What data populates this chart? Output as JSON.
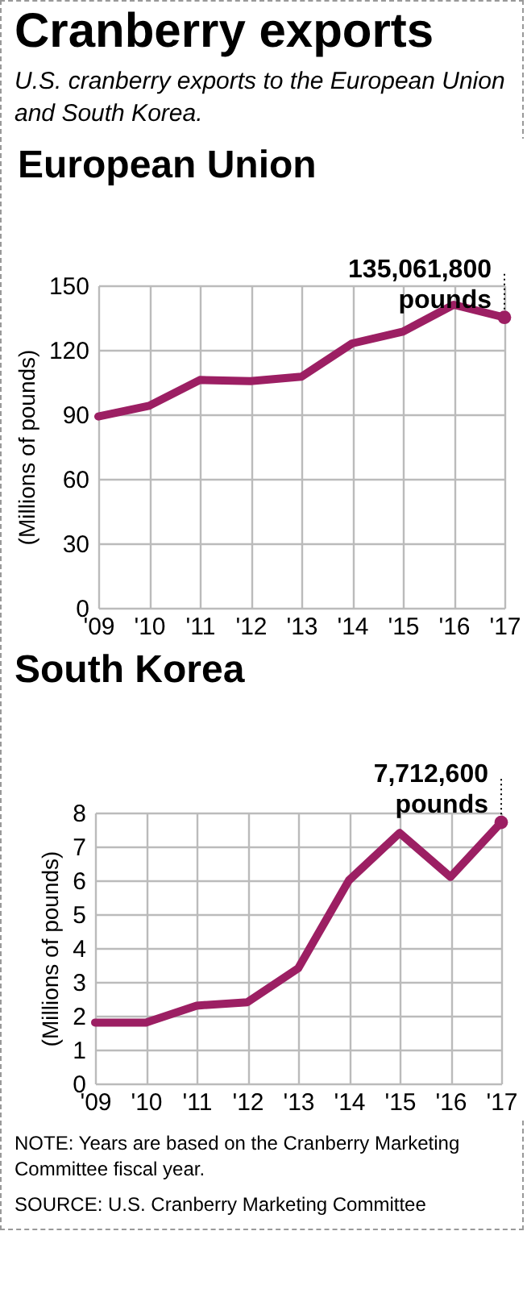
{
  "chart_data": [
    {
      "type": "other",
      "title": "Cranberry exports",
      "subtitle": "U.S. cranberry exports to the European Union and South Korea."
    },
    {
      "type": "line",
      "title": "European Union",
      "ylabel": "(Millions of pounds)",
      "categories": [
        "'09",
        "'10",
        "'11",
        "'12",
        "'13",
        "'14",
        "'15",
        "'16",
        "'17"
      ],
      "series": [
        {
          "color": "#9c1f63",
          "values": [
            89,
            94,
            106,
            105.5,
            107.5,
            123,
            128.5,
            141,
            135.1
          ]
        }
      ],
      "ylim": [
        0,
        150
      ],
      "yticks": [
        0,
        30,
        60,
        90,
        120,
        150
      ],
      "grid": true,
      "annotations": [
        {
          "text": "135,061,800 pounds",
          "x": "'17",
          "y": 135.1
        }
      ]
    },
    {
      "type": "line",
      "title": "South Korea",
      "ylabel": "(Millions of pounds)",
      "categories": [
        "'09",
        "'10",
        "'11",
        "'12",
        "'13",
        "'14",
        "'15",
        "'16",
        "'17"
      ],
      "series": [
        {
          "color": "#9c1f63",
          "values": [
            1.8,
            1.8,
            2.3,
            2.4,
            3.4,
            6.0,
            7.4,
            6.1,
            7.71
          ]
        }
      ],
      "ylim": [
        0,
        8
      ],
      "yticks": [
        0,
        1,
        2,
        3,
        4,
        5,
        6,
        7,
        8
      ],
      "grid": true,
      "annotations": [
        {
          "text": "7,712,600 pounds",
          "x": "'17",
          "y": 7.71
        },
        "NOTE: Years are based on the Cranberry Marketing Committee fiscal year.",
        "SOURCE: U.S. Cranberry Marketing Committee"
      ]
    }
  ]
}
